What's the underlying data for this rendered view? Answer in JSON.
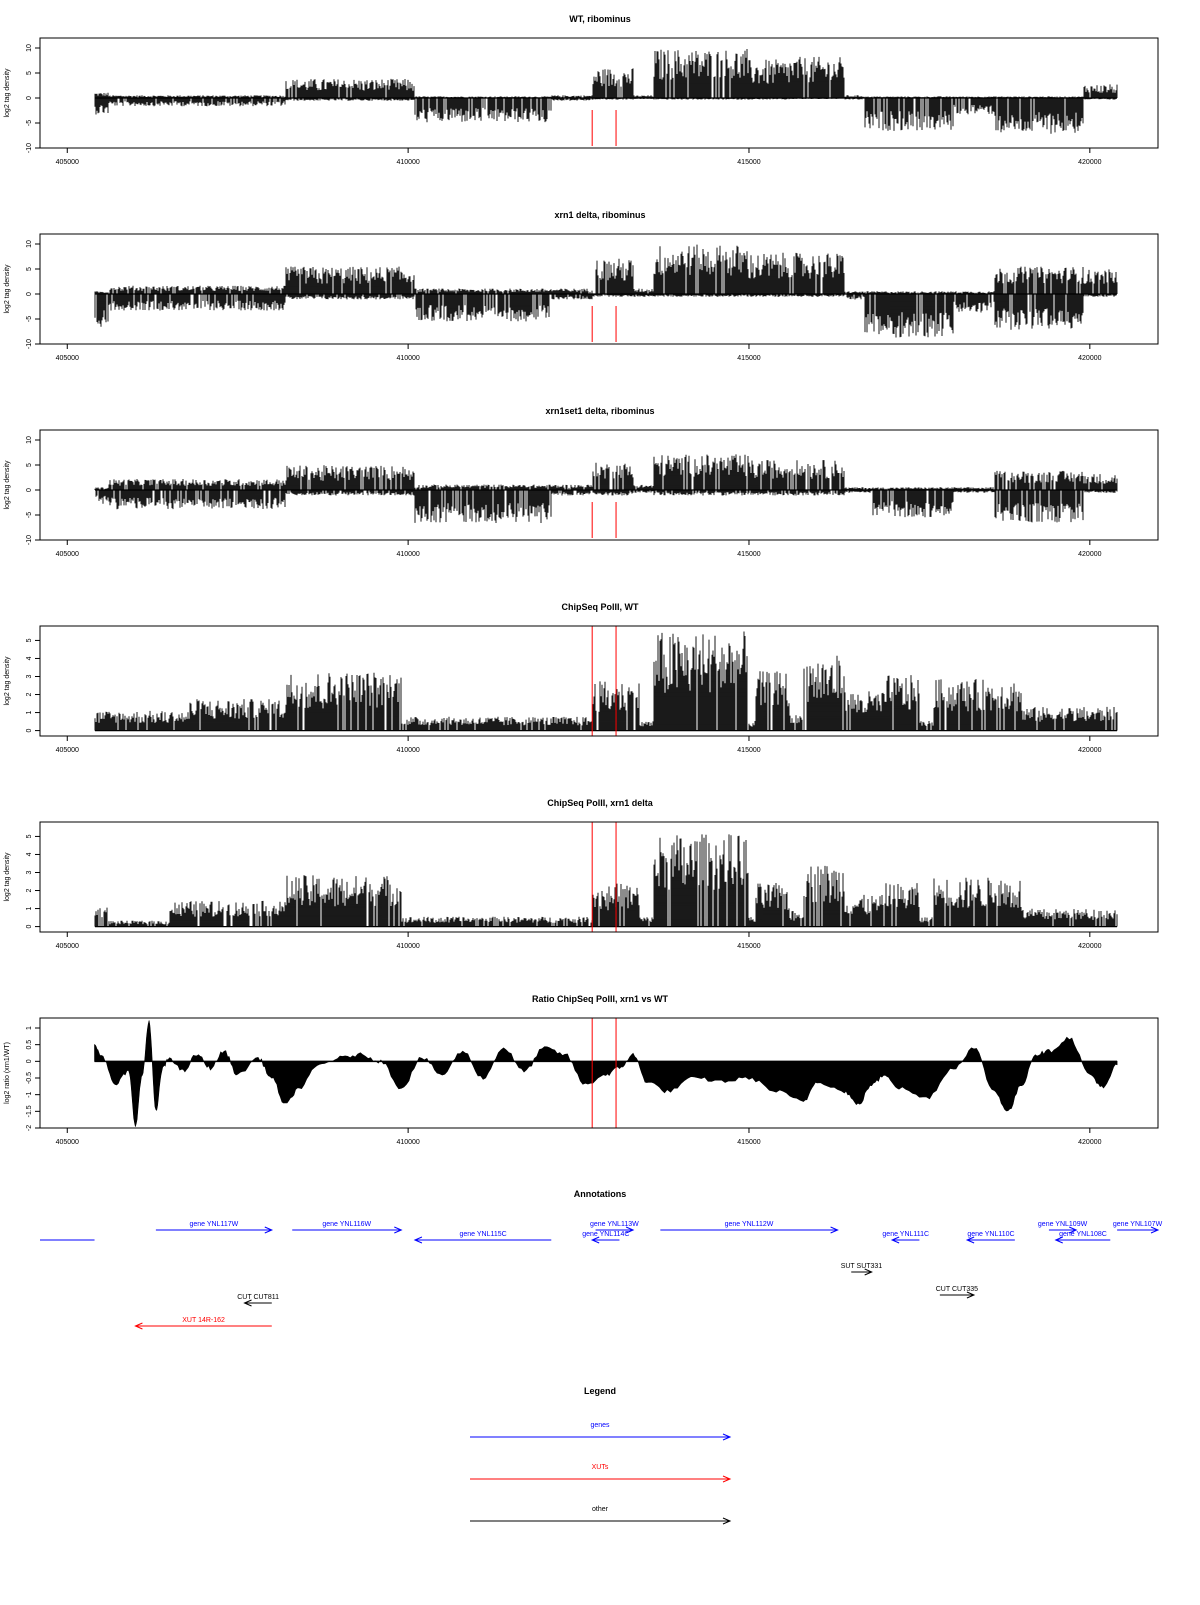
{
  "figure": {
    "x_ticks": [
      405000,
      410000,
      415000,
      420000
    ],
    "x_range": [
      404600,
      421000
    ]
  },
  "red_markers": [
    412700,
    413050
  ],
  "chart_data": [
    {
      "type": "bar",
      "title": "WT, ribominus",
      "ylabel": "log2 tag density",
      "ylim": [
        -10,
        12
      ],
      "yticks": [
        10,
        5,
        0,
        -5,
        -10
      ],
      "x_range": [
        405400,
        420400
      ],
      "profile": [
        {
          "x": [
            405400,
            405600
          ],
          "pos": 1,
          "neg": -3
        },
        {
          "x": [
            405600,
            408200
          ],
          "pos": 0.5,
          "neg": -1.5
        },
        {
          "x": [
            408200,
            410100
          ],
          "pos": 3.5,
          "neg": -0.5
        },
        {
          "x": [
            410100,
            412100
          ],
          "pos": 0.3,
          "neg": -4.5
        },
        {
          "x": [
            412100,
            412700
          ],
          "pos": 0.5,
          "neg": -0.5
        },
        {
          "x": [
            412700,
            413300
          ],
          "pos": 5.5,
          "neg": -0.3
        },
        {
          "x": [
            413300,
            413600
          ],
          "pos": 0.5,
          "neg": -0.2
        },
        {
          "x": [
            413600,
            415000
          ],
          "pos": 9,
          "neg": -0.3
        },
        {
          "x": [
            415000,
            415600
          ],
          "pos": 7,
          "neg": -0.3
        },
        {
          "x": [
            415600,
            416400
          ],
          "pos": 7.5,
          "neg": -0.2
        },
        {
          "x": [
            416400,
            416700
          ],
          "pos": 0.5,
          "neg": -0.3
        },
        {
          "x": [
            416700,
            418000
          ],
          "pos": 0.3,
          "neg": -6
        },
        {
          "x": [
            418000,
            418600
          ],
          "pos": 0.3,
          "neg": -3
        },
        {
          "x": [
            418600,
            419900
          ],
          "pos": 0.3,
          "neg": -6.5
        },
        {
          "x": [
            419900,
            420400
          ],
          "pos": 2.5,
          "neg": -0.3
        }
      ]
    },
    {
      "type": "bar",
      "title": "xrn1 delta, ribominus",
      "ylabel": "log2 tag density",
      "ylim": [
        -10,
        12
      ],
      "yticks": [
        10,
        5,
        0,
        -5,
        -10
      ],
      "x_range": [
        405400,
        420400
      ],
      "profile": [
        {
          "x": [
            405400,
            405600
          ],
          "pos": 0.5,
          "neg": -6
        },
        {
          "x": [
            405600,
            408200
          ],
          "pos": 1.5,
          "neg": -3
        },
        {
          "x": [
            408200,
            410100
          ],
          "pos": 5,
          "neg": -1
        },
        {
          "x": [
            410100,
            412100
          ],
          "pos": 1,
          "neg": -5
        },
        {
          "x": [
            412100,
            412700
          ],
          "pos": 1,
          "neg": -1
        },
        {
          "x": [
            412700,
            413300
          ],
          "pos": 6.5,
          "neg": -0.5
        },
        {
          "x": [
            413300,
            413600
          ],
          "pos": 1,
          "neg": -0.5
        },
        {
          "x": [
            413600,
            415000
          ],
          "pos": 9,
          "neg": -0.5
        },
        {
          "x": [
            415000,
            415600
          ],
          "pos": 7.5,
          "neg": -0.5
        },
        {
          "x": [
            415600,
            416400
          ],
          "pos": 7.5,
          "neg": -0.5
        },
        {
          "x": [
            416400,
            416700
          ],
          "pos": 0.5,
          "neg": -1
        },
        {
          "x": [
            416700,
            418000
          ],
          "pos": 0.5,
          "neg": -8
        },
        {
          "x": [
            418000,
            418600
          ],
          "pos": 0.5,
          "neg": -3.5
        },
        {
          "x": [
            418600,
            419900
          ],
          "pos": 5,
          "neg": -6.5
        },
        {
          "x": [
            419900,
            420400
          ],
          "pos": 4.5,
          "neg": -0.5
        }
      ]
    },
    {
      "type": "bar",
      "title": "xrn1set1 delta, ribominus",
      "ylabel": "log2 tag density",
      "ylim": [
        -10,
        12
      ],
      "yticks": [
        10,
        5,
        0,
        -5,
        -10
      ],
      "x_range": [
        405400,
        420400
      ],
      "profile": [
        {
          "x": [
            405400,
            405600
          ],
          "pos": 0.5,
          "neg": -2.5
        },
        {
          "x": [
            405600,
            408200
          ],
          "pos": 2,
          "neg": -3.5
        },
        {
          "x": [
            408200,
            410100
          ],
          "pos": 4.5,
          "neg": -1
        },
        {
          "x": [
            410100,
            412100
          ],
          "pos": 1,
          "neg": -6
        },
        {
          "x": [
            412100,
            412700
          ],
          "pos": 1,
          "neg": -1
        },
        {
          "x": [
            412700,
            413300
          ],
          "pos": 5,
          "neg": -1
        },
        {
          "x": [
            413300,
            413600
          ],
          "pos": 1,
          "neg": -0.5
        },
        {
          "x": [
            413600,
            415000
          ],
          "pos": 6.5,
          "neg": -1
        },
        {
          "x": [
            415000,
            415600
          ],
          "pos": 5.5,
          "neg": -1
        },
        {
          "x": [
            415600,
            416400
          ],
          "pos": 5.5,
          "neg": -1
        },
        {
          "x": [
            416400,
            416800
          ],
          "pos": 0.5,
          "neg": -0.5
        },
        {
          "x": [
            416800,
            418000
          ],
          "pos": 0.5,
          "neg": -5
        },
        {
          "x": [
            418000,
            418600
          ],
          "pos": 0.5,
          "neg": -0.5
        },
        {
          "x": [
            418600,
            419900
          ],
          "pos": 3.5,
          "neg": -6
        },
        {
          "x": [
            419900,
            420400
          ],
          "pos": 3,
          "neg": -0.5
        }
      ]
    },
    {
      "type": "bar",
      "title": "ChipSeq PolII, WT",
      "ylabel": "log2 tag density",
      "ylim": [
        -0.3,
        5.8
      ],
      "yticks": [
        5,
        4,
        3,
        2,
        1,
        0
      ],
      "x_range": [
        405400,
        420400
      ],
      "profile": [
        {
          "x": [
            405400,
            406800
          ],
          "neg": 0,
          "pos": 1
        },
        {
          "x": [
            406800,
            408200
          ],
          "neg": 0,
          "pos": 1.6
        },
        {
          "x": [
            408200,
            409900
          ],
          "neg": 0,
          "pos": 3
        },
        {
          "x": [
            409900,
            412700
          ],
          "neg": 0,
          "pos": 0.7
        },
        {
          "x": [
            412700,
            413400
          ],
          "neg": 0,
          "pos": 2.5
        },
        {
          "x": [
            413400,
            413600
          ],
          "neg": 0,
          "pos": 0.5
        },
        {
          "x": [
            413600,
            415000
          ],
          "neg": 0,
          "pos": 5
        },
        {
          "x": [
            415000,
            415100
          ],
          "neg": 0,
          "pos": 0.5
        },
        {
          "x": [
            415100,
            415600
          ],
          "neg": 0,
          "pos": 3
        },
        {
          "x": [
            415600,
            415800
          ],
          "neg": 0,
          "pos": 0.8
        },
        {
          "x": [
            415800,
            416400
          ],
          "neg": 0,
          "pos": 3.8
        },
        {
          "x": [
            416400,
            417000
          ],
          "neg": 0,
          "pos": 2
        },
        {
          "x": [
            417000,
            417500
          ],
          "neg": 0,
          "pos": 2.8
        },
        {
          "x": [
            417500,
            417700
          ],
          "neg": 0,
          "pos": 0.5
        },
        {
          "x": [
            417700,
            419000
          ],
          "neg": 0,
          "pos": 2.6
        },
        {
          "x": [
            419000,
            420400
          ],
          "neg": 0,
          "pos": 1.2
        }
      ]
    },
    {
      "type": "bar",
      "title": "ChipSeq PolII, xrn1 delta",
      "ylabel": "log2 tag density",
      "ylim": [
        -0.3,
        5.8
      ],
      "yticks": [
        5,
        4,
        3,
        2,
        1,
        0
      ],
      "x_range": [
        405400,
        420400
      ],
      "profile": [
        {
          "x": [
            405400,
            405600
          ],
          "neg": 0,
          "pos": 1
        },
        {
          "x": [
            405600,
            406500
          ],
          "neg": 0,
          "pos": 0.3
        },
        {
          "x": [
            406500,
            408200
          ],
          "neg": 0,
          "pos": 1.3
        },
        {
          "x": [
            408200,
            409900
          ],
          "neg": 0,
          "pos": 2.6
        },
        {
          "x": [
            409900,
            412700
          ],
          "neg": 0,
          "pos": 0.5
        },
        {
          "x": [
            412700,
            413400
          ],
          "neg": 0,
          "pos": 2.2
        },
        {
          "x": [
            413400,
            413600
          ],
          "neg": 0,
          "pos": 0.5
        },
        {
          "x": [
            413600,
            415000
          ],
          "neg": 0,
          "pos": 4.7
        },
        {
          "x": [
            415000,
            415100
          ],
          "neg": 0,
          "pos": 0.5
        },
        {
          "x": [
            415100,
            415600
          ],
          "neg": 0,
          "pos": 2.2
        },
        {
          "x": [
            415600,
            415800
          ],
          "neg": 0,
          "pos": 0.8
        },
        {
          "x": [
            415800,
            416400
          ],
          "neg": 0,
          "pos": 3.2
        },
        {
          "x": [
            416400,
            417000
          ],
          "neg": 0,
          "pos": 1.6
        },
        {
          "x": [
            417000,
            417500
          ],
          "neg": 0,
          "pos": 2.2
        },
        {
          "x": [
            417500,
            417700
          ],
          "neg": 0,
          "pos": 0.5
        },
        {
          "x": [
            417700,
            419000
          ],
          "neg": 0,
          "pos": 2.5
        },
        {
          "x": [
            419000,
            420400
          ],
          "neg": 0,
          "pos": 0.9
        }
      ]
    },
    {
      "type": "area",
      "title": "Ratio ChipSeq PolII, xrn1 vs WT",
      "ylabel": "log2 ratio (xrn1/WT)",
      "ylim": [
        -2.0,
        1.3
      ],
      "yticks": [
        1.0,
        0.5,
        0.0,
        -0.5,
        -1.0,
        -1.5,
        -2.0
      ],
      "x": [
        405400,
        405500,
        405700,
        405900,
        406000,
        406100,
        406200,
        406300,
        406400,
        406500,
        406700,
        406900,
        407100,
        407300,
        407500,
        407800,
        408000,
        408200,
        408400,
        408700,
        409000,
        409300,
        409600,
        409900,
        410200,
        410500,
        410800,
        411100,
        411400,
        411700,
        412000,
        412300,
        412600,
        412900,
        413100,
        413300,
        413500,
        413800,
        414200,
        414600,
        415000,
        415400,
        415800,
        416000,
        416400,
        416600,
        416800,
        417000,
        417200,
        417600,
        418000,
        418300,
        418600,
        418800,
        419000,
        419200,
        419400,
        419700,
        420000,
        420200,
        420400
      ],
      "y": [
        0.5,
        0.2,
        -0.7,
        -0.3,
        -1.9,
        -0.4,
        1.2,
        -1.5,
        -0.2,
        0.1,
        -0.3,
        0.2,
        -0.2,
        0.3,
        -0.4,
        0.1,
        -0.5,
        -1.3,
        -0.8,
        -0.1,
        0.1,
        0.2,
        0.0,
        -0.8,
        0.1,
        -0.4,
        0.3,
        -0.5,
        0.4,
        -0.3,
        0.4,
        0.2,
        -0.7,
        -0.4,
        -0.2,
        0.2,
        -0.6,
        -0.9,
        -0.5,
        -0.6,
        -0.5,
        -0.9,
        -1.2,
        -0.6,
        -0.9,
        -1.3,
        -0.7,
        -0.4,
        -0.8,
        -1.1,
        -0.2,
        0.4,
        -0.9,
        -1.5,
        -0.7,
        0.2,
        0.3,
        0.7,
        -0.4,
        -0.8,
        -0.1
      ]
    }
  ],
  "annotations": {
    "title": "Annotations",
    "features": [
      {
        "label": "",
        "type": "gene",
        "start": 404600,
        "end": 405400,
        "row": 1,
        "dir": "none"
      },
      {
        "label": "gene YNL117W",
        "type": "gene",
        "start": 406300,
        "end": 408000,
        "row": 0,
        "dir": "right"
      },
      {
        "label": "gene YNL116W",
        "type": "gene",
        "start": 408300,
        "end": 409900,
        "row": 0,
        "dir": "right"
      },
      {
        "label": "gene YNL115C",
        "type": "gene",
        "start": 410100,
        "end": 412100,
        "row": 1,
        "dir": "left"
      },
      {
        "label": "gene YNL113W",
        "type": "gene",
        "start": 412750,
        "end": 413300,
        "row": 0,
        "dir": "right"
      },
      {
        "label": "gene YNL114C",
        "type": "gene",
        "start": 412700,
        "end": 413100,
        "row": 0.9,
        "dir": "left"
      },
      {
        "label": "gene YNL112W",
        "type": "gene",
        "start": 413700,
        "end": 416300,
        "row": 0,
        "dir": "right"
      },
      {
        "label": "gene YNL111C",
        "type": "gene",
        "start": 417100,
        "end": 417500,
        "row": 1,
        "dir": "left"
      },
      {
        "label": "gene YNL110C",
        "type": "gene",
        "start": 418200,
        "end": 418900,
        "row": 1,
        "dir": "left"
      },
      {
        "label": "gene YNL109W",
        "type": "gene",
        "start": 419400,
        "end": 419800,
        "row": 0,
        "dir": "right"
      },
      {
        "label": "gene YNL108C",
        "type": "gene",
        "start": 419500,
        "end": 420300,
        "row": 1,
        "dir": "left"
      },
      {
        "label": "gene YNL107W",
        "type": "gene",
        "start": 420400,
        "end": 421000,
        "row": 0,
        "dir": "right"
      },
      {
        "label": "SUT SUT331",
        "type": "other",
        "start": 416500,
        "end": 416800,
        "row": 3,
        "dir": "right"
      },
      {
        "label": "CUT CUT335",
        "type": "other",
        "start": 417800,
        "end": 418300,
        "row": 4,
        "dir": "right"
      },
      {
        "label": "CUT CUT811",
        "type": "other",
        "start": 407600,
        "end": 408000,
        "row": 5,
        "dir": "left"
      },
      {
        "label": "XUT 14R-162",
        "type": "xut",
        "start": 406000,
        "end": 408000,
        "row": 6,
        "dir": "left"
      }
    ]
  },
  "legend": {
    "title": "Legend",
    "items": [
      {
        "label": "genes",
        "color": "#0000ff"
      },
      {
        "label": "XUTs",
        "color": "#ff0000"
      },
      {
        "label": "other",
        "color": "#000000"
      }
    ]
  },
  "colors": {
    "bars": "#000000",
    "marker": "#ff0000",
    "gene": "#0000ff",
    "xut": "#ff0000",
    "other": "#000000"
  }
}
